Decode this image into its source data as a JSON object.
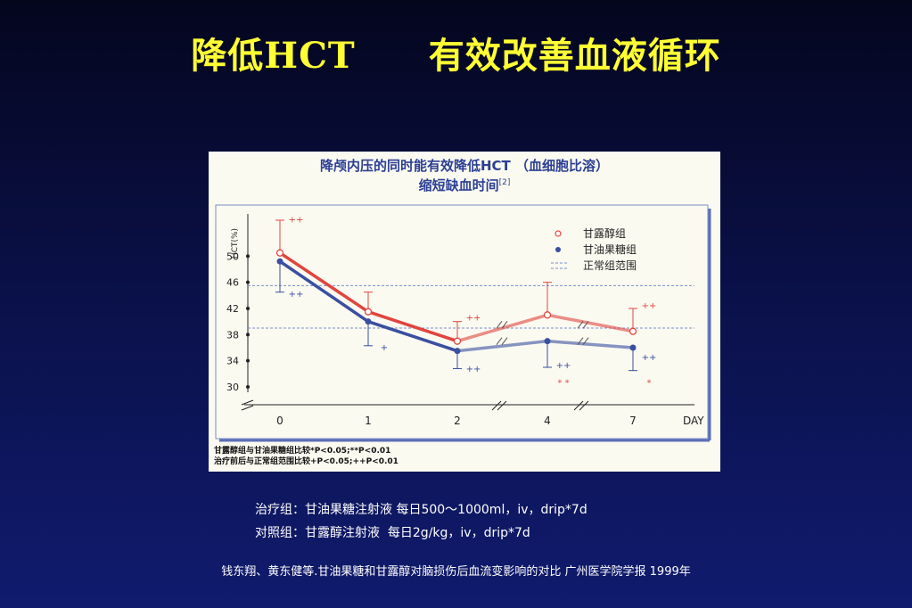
{
  "slide": {
    "title": "降低HCT　　有效改善血液循环",
    "treatment_note": "治疗组：甘油果糖注射液 每日500～1000ml，iv，drip*7d",
    "control_note": "对照组：甘露醇注射液  每日2g/kg，iv，drip*7d",
    "citation": "钱东翔、黄东健等.甘油果糖和甘露醇对脑损伤后血流变影响的对比 广州医学院学报 1999年"
  },
  "colors": {
    "background": "#0a1046",
    "title": "#ffff33",
    "mannitol": "#e0453e",
    "glycerol": "#3a4fa0",
    "normal_range": "#7a8ccc",
    "figure_bg": "#fbfaf1"
  },
  "chart_data": {
    "type": "line",
    "title_line1": "降颅内压的同时能有效降低HCT （血细胞比溶）",
    "title_line2": "缩短缺血时间",
    "title_ref": "[2]",
    "ylabel": "HCT(%)",
    "xlabel": "DAY",
    "ylim": [
      30,
      54
    ],
    "yticks": [
      30,
      34,
      38,
      42,
      46,
      50
    ],
    "categories": [
      "0",
      "1",
      "2",
      "4",
      "7"
    ],
    "series": [
      {
        "name": "甘露醇组",
        "values": [
          50.5,
          41.5,
          37,
          41,
          38.5
        ],
        "error_upper": [
          55.5,
          44.5,
          40,
          46,
          42
        ],
        "color": "#e0453e",
        "marker": "open-circle"
      },
      {
        "name": "甘油果糖组",
        "values": [
          49.2,
          40,
          35.5,
          37,
          36
        ],
        "error_lower": [
          44.5,
          36.3,
          32.8,
          33,
          32.5
        ],
        "color": "#3a4fa0",
        "marker": "filled-circle"
      }
    ],
    "normal_range": {
      "name": "正常组范围",
      "lower": 39,
      "upper": 45.5
    },
    "annotations": [
      {
        "x": "0",
        "y": 55.6,
        "text": "++",
        "color": "#e0453e"
      },
      {
        "x": "0",
        "y": 44.2,
        "text": "++",
        "color": "#3a4fa0"
      },
      {
        "x": "1",
        "y": 36.0,
        "text": "+",
        "color": "#3a4fa0"
      },
      {
        "x": "2",
        "y": 40.6,
        "text": "++",
        "color": "#e0453e"
      },
      {
        "x": "2",
        "y": 32.7,
        "text": "++",
        "color": "#3a4fa0"
      },
      {
        "x": "4",
        "y": 33.3,
        "text": "++",
        "color": "#3a4fa0"
      },
      {
        "x": "4",
        "y": 30.6,
        "text": "* *",
        "color": "#e0453e"
      },
      {
        "x": "7",
        "y": 42.4,
        "text": "++",
        "color": "#e0453e"
      },
      {
        "x": "7",
        "y": 34.5,
        "text": "++",
        "color": "#3a4fa0"
      },
      {
        "x": "7",
        "y": 30.6,
        "text": "*",
        "color": "#e0453e"
      }
    ],
    "footnote_line1": "甘露醇组与甘油果糖组比较*P<0.05;**P<0.01",
    "footnote_line2": "治疗前后与正常组范围比较+P<0.05;++P<0.01",
    "legend_position": "top-right",
    "grid": false
  }
}
